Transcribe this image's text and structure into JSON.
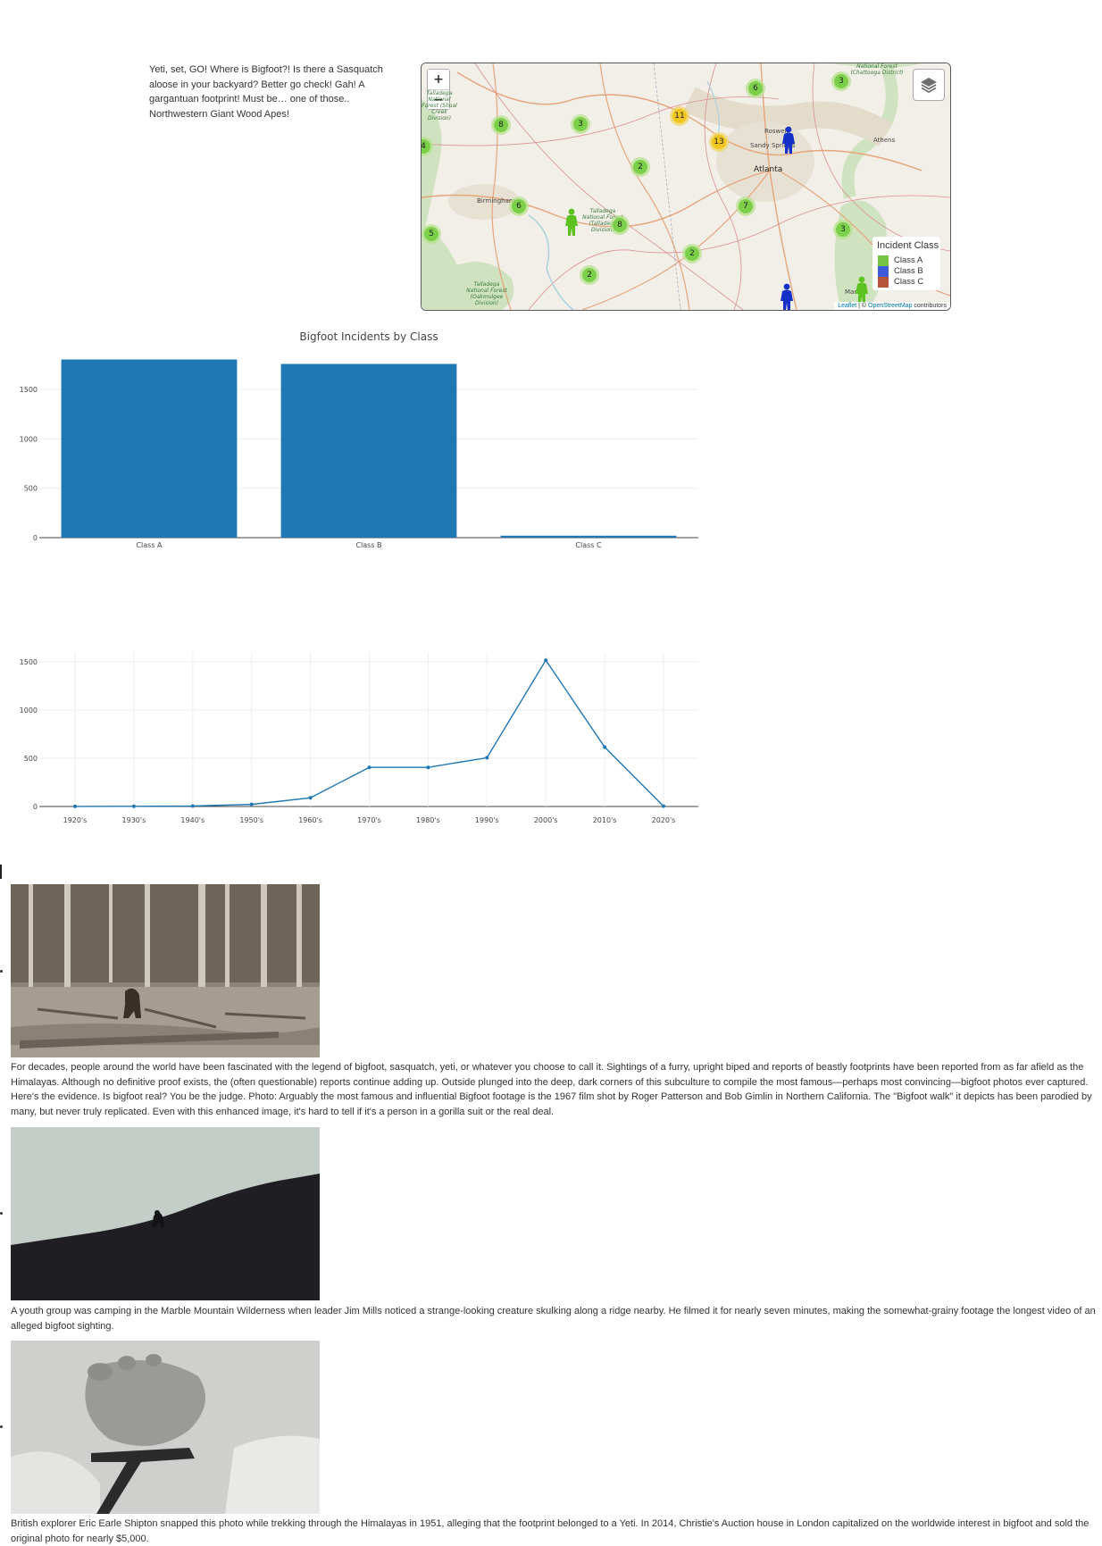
{
  "intro": {
    "text": "Yeti, set, GO! Where is Bigfoot?! Is there a Sasquatch aloose in your backyard? Better go check! Gah! A gargantuan footprint! Must be… one of those.. Northwestern Giant Wood Apes!"
  },
  "map": {
    "zoom_in": "+",
    "zoom_out": "−",
    "layers_icon": "layers-icon",
    "places": {
      "atlanta": "Atlanta",
      "roswell": "Roswell",
      "sandy_springs": "Sandy Springs",
      "athens": "Athens",
      "birmingham": "Birmingham",
      "macon": "Macon",
      "talladega_north": "Talladega National Forest (Shoal Creek Division)",
      "talladega_mid": "Talladega National Forest (Talladega Division)",
      "talladega_south": "Talladega National Forest (Oakmulgee Division)",
      "chattahoochee": "National Forest (Chattooga District)"
    },
    "clusters": [
      {
        "count": "6"
      },
      {
        "count": "3"
      },
      {
        "count": "11"
      },
      {
        "count": "13"
      },
      {
        "count": "8"
      },
      {
        "count": "3"
      },
      {
        "count": "4"
      },
      {
        "count": "2"
      },
      {
        "count": "6"
      },
      {
        "count": "8"
      },
      {
        "count": "5"
      },
      {
        "count": "7"
      },
      {
        "count": "2"
      },
      {
        "count": "2"
      },
      {
        "count": "3"
      }
    ],
    "legend": {
      "title": "Incident Class",
      "items": [
        {
          "label": "Class A",
          "color": "#75c444"
        },
        {
          "label": "Class B",
          "color": "#3d5bd9"
        },
        {
          "label": "Class C",
          "color": "#b5553c"
        }
      ]
    },
    "attribution": {
      "leaflet": "Leaflet",
      "separator": " | © ",
      "osm": "OpenStreetMap",
      "suffix": " contributors"
    }
  },
  "chart_data": [
    {
      "type": "bar",
      "title": "Bigfoot Incidents by Class",
      "categories": [
        "Class A",
        "Class B",
        "Class C"
      ],
      "values": [
        1805,
        1760,
        20
      ],
      "yticks": [
        0,
        500,
        1000,
        1500
      ],
      "ylim": [
        0,
        1900
      ],
      "color": "#1f77b4",
      "grid": true
    },
    {
      "type": "line",
      "title": "",
      "categories": [
        "1920's",
        "1930's",
        "1940's",
        "1950's",
        "1960's",
        "1970's",
        "1980's",
        "1990's",
        "2000's",
        "2010's",
        "2020's"
      ],
      "values": [
        1,
        2,
        5,
        22,
        90,
        405,
        405,
        505,
        1515,
        615,
        3
      ],
      "yticks": [
        0,
        500,
        1000,
        1500
      ],
      "ylim": [
        0,
        1600
      ],
      "color": "#1f77b4",
      "grid": true
    }
  ],
  "gallery": [
    {
      "image": "patterson-gimlin-bigfoot-photo",
      "caption": "For decades, people around the world have been fascinated with the legend of bigfoot, sasquatch, yeti, or whatever you choose to call it. Sightings of a furry, upright biped and reports of beastly footprints have been reported from as far afield as the Himalayas. Although no definitive proof exists, the (often questionable) reports continue adding up. Outside plunged into the deep, dark corners of this subculture to compile the most famous—perhaps most convincing—bigfoot photos ever captured. Here's the evidence. Is bigfoot real? You be the judge. Photo: Arguably the most famous and influential Bigfoot footage is the 1967 film shot by Roger Patterson and Bob Gimlin in Northern California. The \"Bigfoot walk\" it depicts has been parodied by many, but never truly replicated. Even with this enhanced image, it's hard to tell if it's a person in a gorilla suit or the real deal."
    },
    {
      "image": "marble-mountain-ridge-photo",
      "caption": "A youth group was camping in the Marble Mountain Wilderness when leader Jim Mills noticed a strange-looking creature skulking along a ridge nearby. He filmed it for nearly seven minutes, making the somewhat-grainy footage the longest video of an alleged bigfoot sighting."
    },
    {
      "image": "yeti-footprint-photo",
      "caption": "British explorer Eric Earle Shipton snapped this photo while trekking through the Himalayas in 1951, alleging that the footprint belonged to a Yeti. In 2014, Christie's Auction house in London capitalized on the worldwide interest in bigfoot and sold the original photo for nearly $5,000."
    }
  ]
}
